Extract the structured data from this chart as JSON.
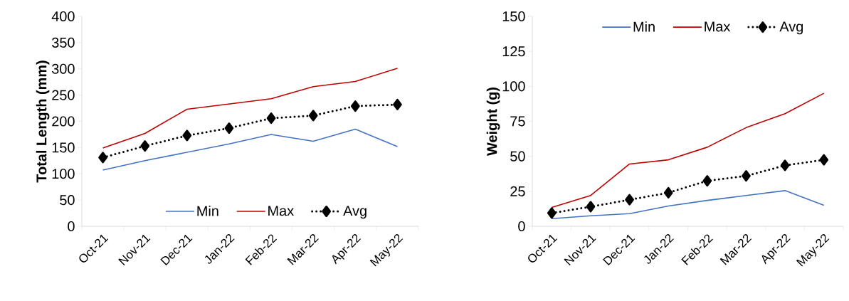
{
  "chart_data": [
    {
      "type": "line",
      "ylabel": "Total Length (mm)",
      "categories": [
        "Oct-21",
        "Nov-21",
        "Dec-21",
        "Jan-22",
        "Feb-22",
        "Mar-22",
        "Apr-22",
        "May-22"
      ],
      "ylim": [
        0,
        400
      ],
      "yticks": [
        0,
        50,
        100,
        150,
        200,
        250,
        300,
        350,
        400
      ],
      "grid": false,
      "legend": "bottom",
      "series": [
        {
          "name": "Min",
          "color": "#4472c4",
          "values": [
            107,
            125,
            141,
            157,
            175,
            162,
            185,
            152
          ]
        },
        {
          "name": "Max",
          "color": "#c00000",
          "values": [
            149,
            177,
            223,
            233,
            243,
            266,
            276,
            301
          ]
        },
        {
          "name": "Avg",
          "color": "#000000",
          "marker": "diamond",
          "line_style": "dotted",
          "values": [
            131,
            153,
            173,
            187,
            206,
            211,
            229,
            232
          ]
        }
      ]
    },
    {
      "type": "line",
      "ylabel": "Weight (g)",
      "categories": [
        "Oct-21",
        "Nov-21",
        "Dec-21",
        "Jan-22",
        "Feb-22",
        "Mar-22",
        "Apr-22",
        "May-22"
      ],
      "ylim": [
        0,
        150
      ],
      "yticks": [
        0,
        25,
        50,
        75,
        100,
        125,
        150
      ],
      "grid": false,
      "legend": "top",
      "series": [
        {
          "name": "Min",
          "color": "#4472c4",
          "values": [
            5.5,
            7.5,
            9,
            14.5,
            18.5,
            22,
            25.5,
            15
          ]
        },
        {
          "name": "Max",
          "color": "#c00000",
          "values": [
            13.5,
            22,
            44.5,
            47.5,
            56.5,
            70.5,
            80.5,
            95
          ]
        },
        {
          "name": "Avg",
          "color": "#000000",
          "marker": "diamond",
          "line_style": "dotted",
          "values": [
            9.5,
            14,
            19,
            24,
            32.5,
            36,
            43.5,
            47.5
          ]
        }
      ]
    }
  ]
}
